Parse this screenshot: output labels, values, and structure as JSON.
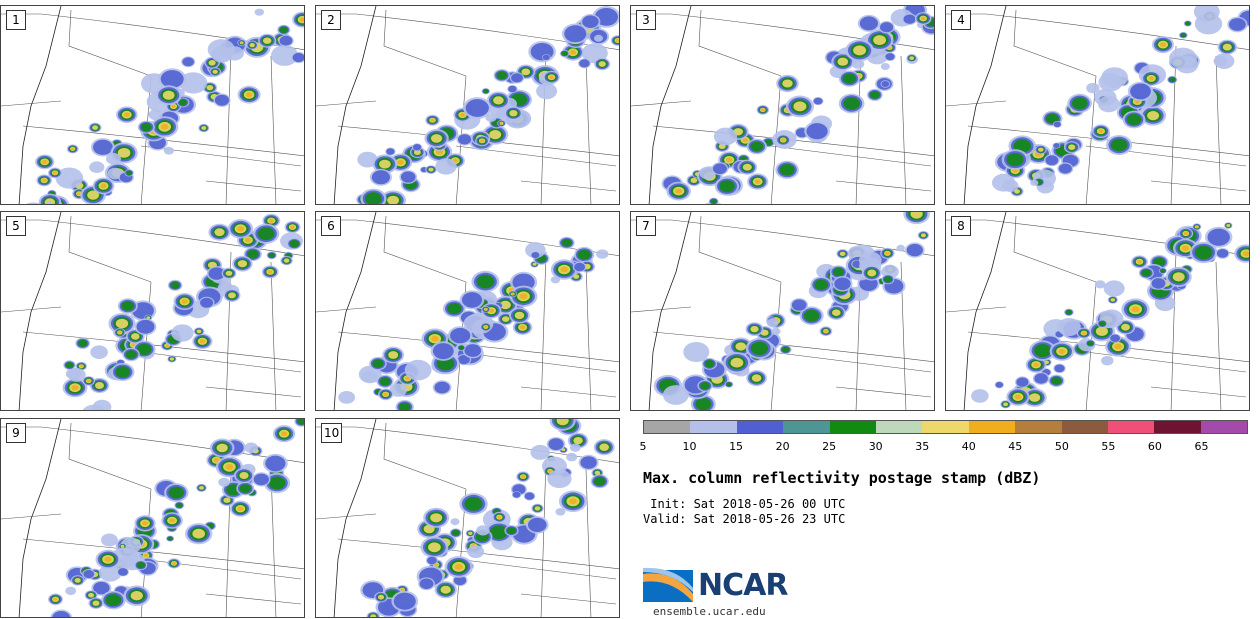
{
  "panels": [
    {
      "label": "1"
    },
    {
      "label": "2"
    },
    {
      "label": "3"
    },
    {
      "label": "4"
    },
    {
      "label": "5"
    },
    {
      "label": "6"
    },
    {
      "label": "7"
    },
    {
      "label": "8"
    },
    {
      "label": "9"
    },
    {
      "label": "10"
    }
  ],
  "colorbar": {
    "colors": [
      "#a6a6a6",
      "#b4c0ea",
      "#5060d2",
      "#4e9696",
      "#118a11",
      "#bed8bc",
      "#eed86b",
      "#f0ae1e",
      "#b47f3c",
      "#8c5a3c",
      "#f05078",
      "#6e1432",
      "#a44aaa"
    ],
    "ticks": [
      "5",
      "10",
      "15",
      "20",
      "25",
      "30",
      "35",
      "40",
      "45",
      "50",
      "55",
      "60",
      "65"
    ]
  },
  "title": "Max. column reflectivity postage stamp (dBZ)",
  "init": " Init: Sat 2018-05-26 00 UTC",
  "valid": "Valid: Sat 2018-05-26 23 UTC",
  "logo": {
    "text": "NCAR",
    "site": "ensemble.ucar.edu"
  }
}
